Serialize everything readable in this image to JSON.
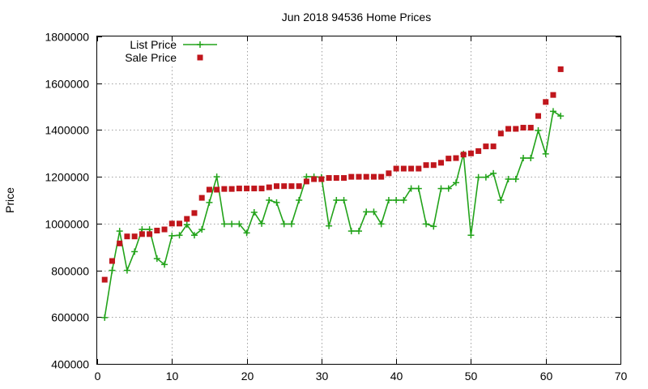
{
  "chart_data": {
    "type": "line",
    "title": "Jun 2018 94536 Home Prices",
    "xlabel": "",
    "ylabel": "Price",
    "xlim": [
      0,
      70
    ],
    "ylim": [
      400000,
      1800000
    ],
    "x_ticks": [
      "0",
      "10",
      "20",
      "30",
      "40",
      "50",
      "60",
      "70"
    ],
    "y_ticks": [
      "400000",
      "600000",
      "800000",
      "1000000",
      "1200000",
      "1400000",
      "1600000",
      "1800000"
    ],
    "grid": true,
    "legend_position": "top-left",
    "series": [
      {
        "name": "List Price",
        "style": "line-plus",
        "color": "#22a31a",
        "x": [
          1,
          2,
          3,
          4,
          5,
          6,
          7,
          8,
          9,
          10,
          11,
          12,
          13,
          14,
          15,
          16,
          17,
          18,
          19,
          20,
          21,
          22,
          23,
          24,
          25,
          26,
          27,
          28,
          29,
          30,
          31,
          32,
          33,
          34,
          35,
          36,
          37,
          38,
          39,
          40,
          41,
          42,
          43,
          44,
          45,
          46,
          47,
          48,
          49,
          50,
          51,
          52,
          53,
          54,
          55,
          56,
          57,
          58,
          59,
          60,
          61,
          62
        ],
        "y": [
          598000,
          800000,
          968000,
          800000,
          880000,
          975000,
          975000,
          850000,
          825000,
          948000,
          950000,
          995000,
          950000,
          975000,
          1090000,
          1200000,
          998000,
          998000,
          998000,
          960000,
          1048000,
          1000000,
          1100000,
          1090000,
          998000,
          998000,
          1100000,
          1200000,
          1200000,
          1198000,
          990000,
          1100000,
          1100000,
          968000,
          968000,
          1050000,
          1050000,
          998000,
          1100000,
          1100000,
          1100000,
          1150000,
          1150000,
          998000,
          988000,
          1150000,
          1150000,
          1175000,
          1298000,
          950000,
          1198000,
          1198000,
          1215000,
          1100000,
          1190000,
          1190000,
          1280000,
          1280000,
          1398000,
          1298000,
          1480000,
          1460000
        ]
      },
      {
        "name": "Sale Price",
        "style": "square-points",
        "color": "#c0161c",
        "x": [
          1,
          2,
          3,
          4,
          5,
          6,
          7,
          8,
          9,
          10,
          11,
          12,
          13,
          14,
          15,
          16,
          17,
          18,
          19,
          20,
          21,
          22,
          23,
          24,
          25,
          26,
          27,
          28,
          29,
          30,
          31,
          32,
          33,
          34,
          35,
          36,
          37,
          38,
          39,
          40,
          41,
          42,
          43,
          44,
          45,
          46,
          47,
          48,
          49,
          50,
          51,
          52,
          53,
          54,
          55,
          56,
          57,
          58,
          59,
          60,
          61,
          62
        ],
        "y": [
          760000,
          840000,
          915000,
          945000,
          945000,
          955000,
          955000,
          970000,
          975000,
          1000000,
          1000000,
          1020000,
          1045000,
          1110000,
          1145000,
          1145000,
          1148000,
          1148000,
          1150000,
          1150000,
          1150000,
          1150000,
          1155000,
          1160000,
          1160000,
          1160000,
          1160000,
          1180000,
          1190000,
          1190000,
          1195000,
          1195000,
          1195000,
          1200000,
          1200000,
          1200000,
          1200000,
          1200000,
          1215000,
          1235000,
          1235000,
          1235000,
          1235000,
          1250000,
          1250000,
          1260000,
          1278000,
          1280000,
          1295000,
          1300000,
          1310000,
          1330000,
          1330000,
          1385000,
          1405000,
          1405000,
          1410000,
          1410000,
          1460000,
          1520000,
          1550000,
          1660000
        ]
      }
    ]
  }
}
